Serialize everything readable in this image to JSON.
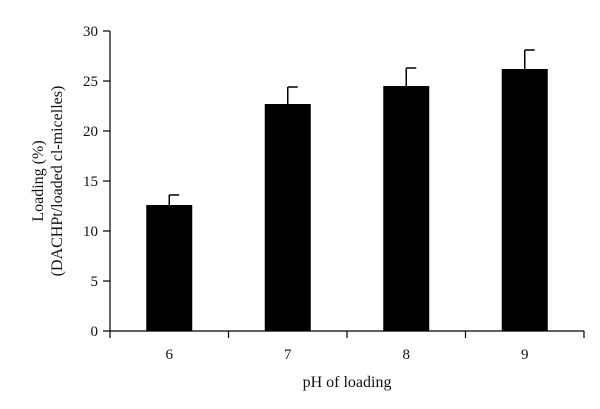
{
  "chart_data": {
    "type": "bar",
    "title": "",
    "xlabel": "pH of loading",
    "ylabel": [
      "Loading (%)",
      "(DACHPt/loaded cl-micelles)"
    ],
    "categories": [
      "6",
      "7",
      "8",
      "9"
    ],
    "values": [
      12.6,
      22.7,
      24.5,
      26.2
    ],
    "error": [
      1.0,
      1.7,
      1.8,
      1.9
    ],
    "ylim": [
      0,
      30
    ],
    "yticks": [
      0,
      5,
      10,
      15,
      20,
      25,
      30
    ],
    "ytick_labels": [
      "0",
      "5",
      "10",
      "15",
      "20",
      "25",
      "30"
    ],
    "grid": false,
    "legend": "none",
    "colors": {
      "bar": "#000000",
      "axis": "#000000",
      "text": "#111111",
      "background": "#ffffff"
    }
  }
}
